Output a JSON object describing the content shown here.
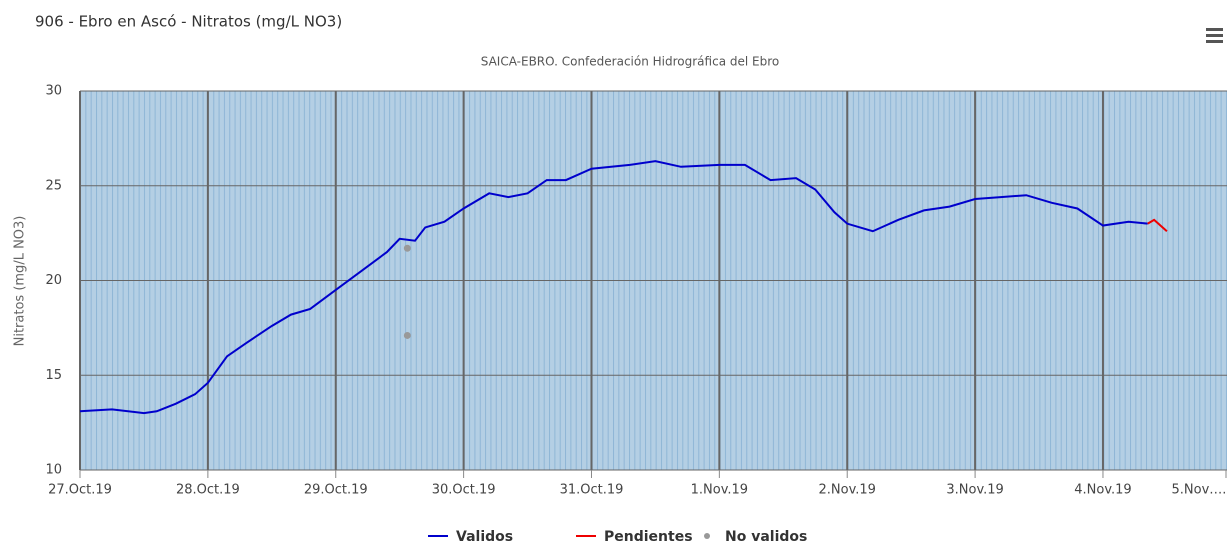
{
  "chart_data": {
    "type": "line",
    "title": "906 - Ebro en Ascó - Nitratos (mg/L NO3)",
    "subtitle": "SAICA-EBRO. Confederación Hidrográfica del Ebro",
    "y_label": "Nitratos (mg/L NO3)",
    "ylim": [
      10,
      30
    ],
    "yticks": [
      10,
      15,
      20,
      25,
      30
    ],
    "xlim": [
      0,
      8.97
    ],
    "xticks": [
      {
        "value": 0,
        "label": "27.Oct.19"
      },
      {
        "value": 1,
        "label": "28.Oct.19"
      },
      {
        "value": 2,
        "label": "29.Oct.19"
      },
      {
        "value": 3,
        "label": "30.Oct.19"
      },
      {
        "value": 4,
        "label": "31.Oct.19"
      },
      {
        "value": 5,
        "label": "1.Nov.19"
      },
      {
        "value": 6,
        "label": "2.Nov.19"
      },
      {
        "value": 7,
        "label": "3.Nov.19"
      },
      {
        "value": 8,
        "label": "4.Nov.19"
      },
      {
        "value": 9,
        "label": "5.Nov…."
      }
    ],
    "grid": true,
    "series": [
      {
        "name": "Validos",
        "color": "#0000cc",
        "kind": "line",
        "x": [
          0,
          0.25,
          0.5,
          0.6,
          0.75,
          0.9,
          1.0,
          1.15,
          1.3,
          1.5,
          1.65,
          1.8,
          2.0,
          2.2,
          2.4,
          2.5,
          2.62,
          2.7,
          2.85,
          3.0,
          3.2,
          3.35,
          3.5,
          3.65,
          3.8,
          4.0,
          4.3,
          4.5,
          4.7,
          5.0,
          5.2,
          5.4,
          5.6,
          5.75,
          5.9,
          6.0,
          6.2,
          6.4,
          6.6,
          6.8,
          7.0,
          7.2,
          7.4,
          7.6,
          7.8,
          8.0,
          8.2,
          8.35
        ],
        "values": [
          13.1,
          13.2,
          13.0,
          13.1,
          13.5,
          14.0,
          14.6,
          16.0,
          16.7,
          17.6,
          18.2,
          18.5,
          19.5,
          20.5,
          21.5,
          22.2,
          22.1,
          22.8,
          23.1,
          23.8,
          24.6,
          24.4,
          24.6,
          25.3,
          25.3,
          25.9,
          26.1,
          26.3,
          26.0,
          26.1,
          26.1,
          25.3,
          25.4,
          24.8,
          23.6,
          23.0,
          22.6,
          23.2,
          23.7,
          23.9,
          24.3,
          24.4,
          24.5,
          24.1,
          23.8,
          22.9,
          23.1,
          23.0
        ]
      },
      {
        "name": "Pendientes",
        "color": "#ee0000",
        "kind": "line",
        "x": [
          8.35,
          8.4,
          8.5
        ],
        "values": [
          23.0,
          23.2,
          22.6
        ]
      },
      {
        "name": "No validos",
        "color": "#999999",
        "kind": "scatter",
        "x": [
          2.56,
          2.56
        ],
        "values": [
          21.7,
          17.1
        ]
      }
    ]
  }
}
